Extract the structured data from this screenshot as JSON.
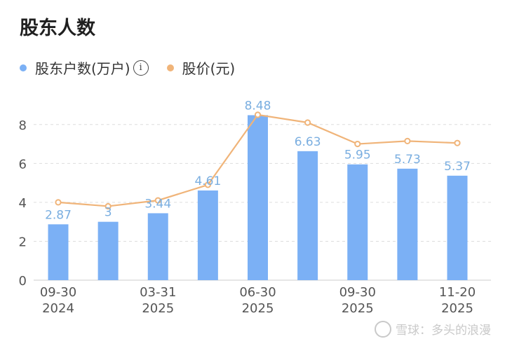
{
  "title": "股东人数",
  "legend": {
    "holders": "股东户数(万户)",
    "price": "股价(元)",
    "info_icon": "info-icon"
  },
  "colors": {
    "bar": "#7bb0f5",
    "line": "#f0b479",
    "grid": "#dddddd",
    "label_bar": "#7aaee0"
  },
  "watermark": "雪球：多头的浪漫",
  "chart_data": {
    "type": "bar",
    "categories": [
      "09-30 2024",
      "",
      "03-31 2025",
      "",
      "06-30 2025",
      "",
      "09-30 2025",
      "",
      "11-20 2025"
    ],
    "x_tick_labels": [
      {
        "index": 0,
        "line1": "09-30",
        "line2": "2024"
      },
      {
        "index": 2,
        "line1": "03-31",
        "line2": "2025"
      },
      {
        "index": 4,
        "line1": "06-30",
        "line2": "2025"
      },
      {
        "index": 6,
        "line1": "09-30",
        "line2": "2025"
      },
      {
        "index": 8,
        "line1": "11-20",
        "line2": "2025"
      }
    ],
    "series": [
      {
        "name": "股东户数(万户)",
        "type": "bar",
        "values": [
          2.87,
          3,
          3.44,
          4.61,
          8.48,
          6.63,
          5.95,
          5.73,
          5.37
        ],
        "labels": [
          "2.87",
          "3",
          "3.44",
          "4.61",
          "8.48",
          "6.63",
          "5.95",
          "5.73",
          "5.37"
        ]
      },
      {
        "name": "股价(元)",
        "type": "line",
        "values": [
          4.0,
          3.8,
          4.1,
          4.9,
          8.5,
          8.1,
          7.0,
          7.15,
          7.05
        ]
      }
    ],
    "yticks": [
      0,
      2,
      4,
      6,
      8
    ],
    "ylim": [
      0,
      9
    ],
    "grid": true,
    "legend_position": "top-left"
  }
}
